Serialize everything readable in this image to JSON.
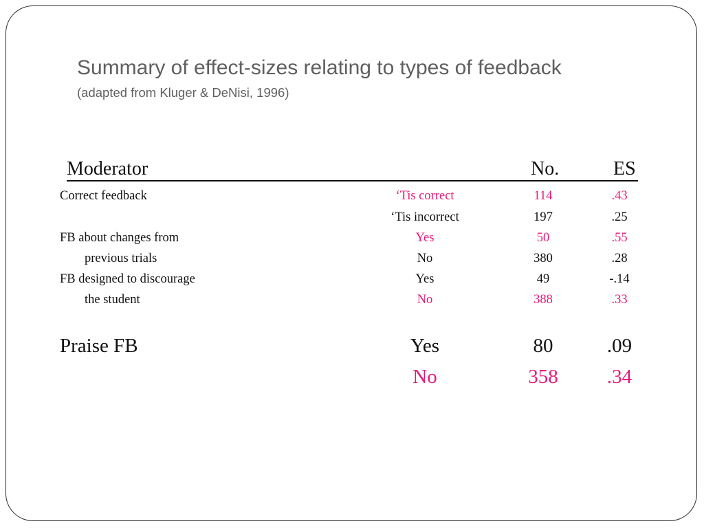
{
  "title": "Summary of effect-sizes relating to types of feedback",
  "subtitle": "(adapted from Kluger & DeNisi, 1996)",
  "table": {
    "headers": {
      "moderator": "Moderator",
      "no": "No.",
      "es": "ES"
    },
    "rows": [
      {
        "label": "Correct feedback",
        "value": "‘Tis correct",
        "no": "114",
        "es": ".43",
        "highlight": true
      },
      {
        "label": "",
        "value": "‘Tis incorrect",
        "no": "197",
        "es": ".25",
        "highlight": false
      },
      {
        "label": "FB about changes from",
        "value": "Yes",
        "no": "50",
        "es": ".55",
        "highlight": true
      },
      {
        "label": "previous trials",
        "value": "No",
        "no": "380",
        "es": ".28",
        "highlight": false
      },
      {
        "label": "FB designed to discourage",
        "value": "Yes",
        "no": "49",
        "es": "-.14",
        "highlight": false
      },
      {
        "label": "the student",
        "value": "No",
        "no": "388",
        "es": ".33",
        "highlight": true
      }
    ],
    "praise": [
      {
        "label": "Praise FB",
        "value": "Yes",
        "no": "80",
        "es": ".09",
        "highlight": false
      },
      {
        "label": "",
        "value": "No",
        "no": "358",
        "es": ".34",
        "highlight": true
      }
    ]
  },
  "colors": {
    "highlight": "#e8187a",
    "title": "#5f5f5f",
    "text": "#111111"
  }
}
